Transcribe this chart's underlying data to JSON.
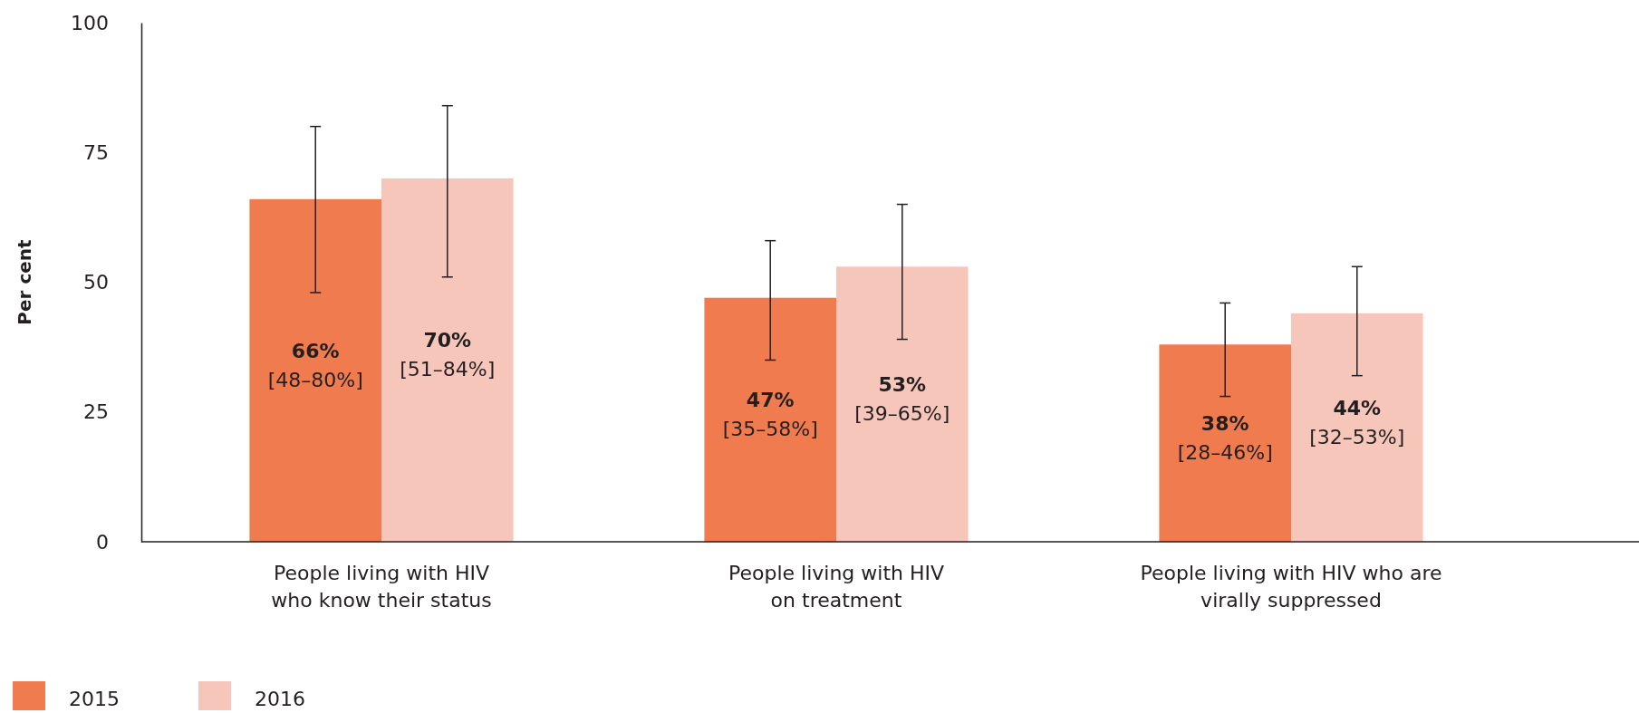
{
  "chart_data": {
    "type": "bar",
    "ylabel": "Per cent",
    "categories": [
      "People living with HIV\nwho know their status",
      "People living with HIV\non treatment",
      "People living with HIV who are\nvirally suppressed"
    ],
    "series": [
      {
        "name": "2015",
        "color": "#ef7b4f",
        "values": [
          66,
          47,
          38
        ],
        "errors": [
          [
            48,
            80
          ],
          [
            35,
            58
          ],
          [
            28,
            46
          ]
        ],
        "value_labels": [
          "66%\n[48–80%]",
          "47%\n[35–58%]",
          "38%\n[28–46%]"
        ]
      },
      {
        "name": "2016",
        "color": "#f7c6bb",
        "values": [
          70,
          53,
          44
        ],
        "errors": [
          [
            51,
            84
          ],
          [
            39,
            65
          ],
          [
            32,
            53
          ]
        ],
        "value_labels": [
          "70%\n[51–84%]",
          "53%\n[39–65%]",
          "44%\n[32–53%]"
        ]
      }
    ],
    "ylim": [
      0,
      100
    ],
    "yticks": [
      0,
      25,
      50,
      75,
      100
    ],
    "legend": "bottom left"
  }
}
